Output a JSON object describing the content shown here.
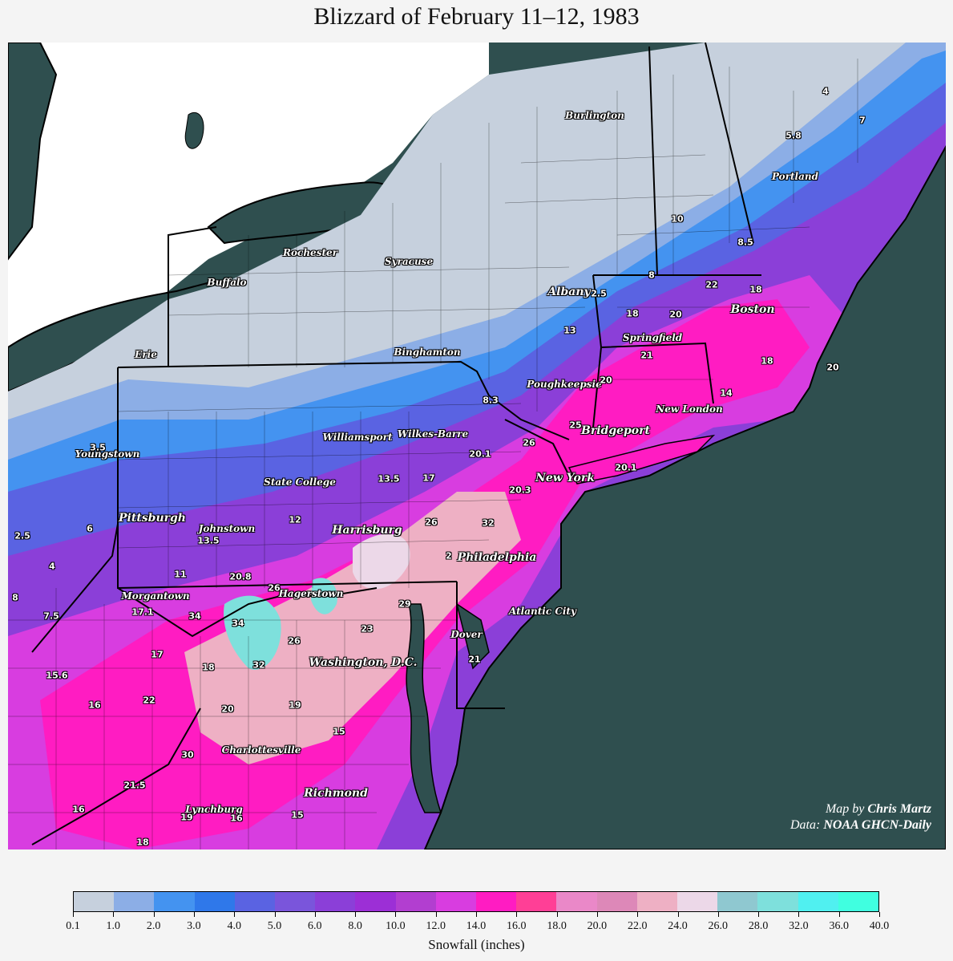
{
  "title": "Blizzard of February 11–12, 1983",
  "colors": {
    "ocean": "#2f4f4f",
    "no_snow": "#ffffff",
    "bins": [
      "#c6d0dd",
      "#8caee6",
      "#4493f0",
      "#2f78ea",
      "#5a63e2",
      "#7a55db",
      "#8b3fd8",
      "#9c2fd6",
      "#b23ed0",
      "#d83de0",
      "#ff1cc2",
      "#ff3f96",
      "#ea88c8",
      "#dd88b8",
      "#eeb0c4",
      "#ecd8e8",
      "#8fc8d0",
      "#7ee0dc",
      "#50f0f0",
      "#40ffe0"
    ]
  },
  "legend": {
    "label": "Snowfall (inches)",
    "ticks": [
      "0.1",
      "1.0",
      "2.0",
      "3.0",
      "4.0",
      "5.0",
      "6.0",
      "8.0",
      "10.0",
      "12.0",
      "14.0",
      "16.0",
      "18.0",
      "20.0",
      "22.0",
      "24.0",
      "26.0",
      "28.0",
      "32.0",
      "36.0",
      "40.0"
    ]
  },
  "credit": {
    "map_prefix": "Map by ",
    "map_author": "Chris Martz",
    "data_prefix": "Data: ",
    "data_source": "NOAA GHCN-Daily"
  },
  "cities": [
    {
      "name": "Burlington",
      "major": false
    },
    {
      "name": "Portland",
      "major": false
    },
    {
      "name": "Rochester",
      "major": false
    },
    {
      "name": "Syracuse",
      "major": false
    },
    {
      "name": "Buffalo",
      "major": false
    },
    {
      "name": "Albany",
      "major": true
    },
    {
      "name": "Boston",
      "major": true
    },
    {
      "name": "Springfield",
      "major": false
    },
    {
      "name": "Erie",
      "major": false
    },
    {
      "name": "Binghamton",
      "major": false
    },
    {
      "name": "Poughkeepsie",
      "major": false
    },
    {
      "name": "New London",
      "major": false
    },
    {
      "name": "Bridgeport",
      "major": true
    },
    {
      "name": "Williamsport",
      "major": false
    },
    {
      "name": "Wilkes-Barre",
      "major": false
    },
    {
      "name": "Youngstown",
      "major": false
    },
    {
      "name": "New York",
      "major": true
    },
    {
      "name": "State College",
      "major": false
    },
    {
      "name": "Pittsburgh",
      "major": true
    },
    {
      "name": "Johnstown",
      "major": false
    },
    {
      "name": "Harrisburg",
      "major": true
    },
    {
      "name": "Philadelphia",
      "major": true
    },
    {
      "name": "Morgantown",
      "major": false
    },
    {
      "name": "Hagerstown",
      "major": false
    },
    {
      "name": "Atlantic City",
      "major": false
    },
    {
      "name": "Dover",
      "major": false
    },
    {
      "name": "Washington, D.C.",
      "major": true
    },
    {
      "name": "Charlottesville",
      "major": false
    },
    {
      "name": "Richmond",
      "major": true
    },
    {
      "name": "Lynchburg",
      "major": false
    }
  ],
  "values": [
    "4",
    "7",
    "5.8",
    "10",
    "8.5",
    "8",
    "22",
    "18",
    "2.5",
    "18",
    "20",
    "13",
    "21",
    "18",
    "20",
    "14",
    "20",
    "8.3",
    "25",
    "26",
    "20.1",
    "20.1",
    "3.5",
    "13.5",
    "17",
    "20.3",
    "12",
    "26",
    "32",
    "2",
    "6",
    "2.5",
    "13.5",
    "4",
    "11",
    "20.8",
    "26",
    "8",
    "17.1",
    "34",
    "34",
    "29",
    "7.5",
    "23",
    "26",
    "17",
    "18",
    "32",
    "21",
    "15.6",
    "16",
    "22",
    "20",
    "19",
    "15",
    "30",
    "21.5",
    "16",
    "19",
    "16",
    "15",
    "18"
  ]
}
